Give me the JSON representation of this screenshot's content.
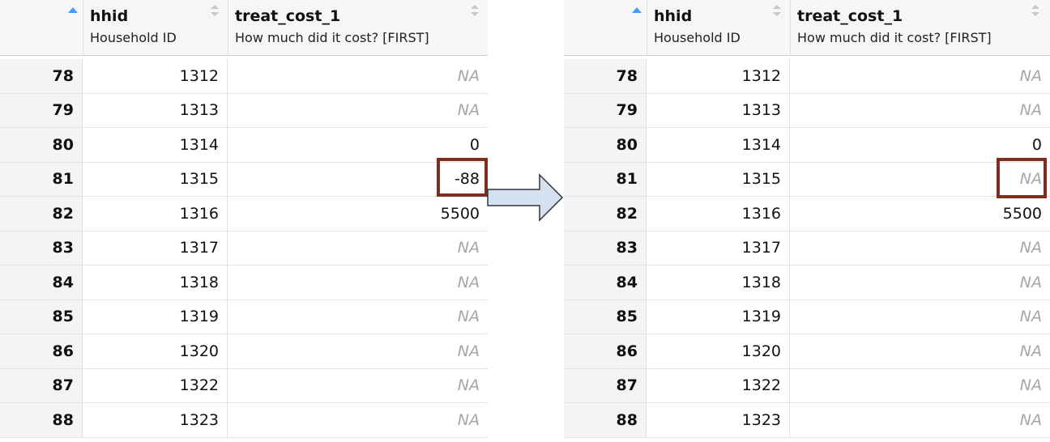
{
  "columns": {
    "hhid": {
      "name": "hhid",
      "label": "Household ID"
    },
    "treat_cost_1": {
      "name": "treat_cost_1",
      "label": "How much did it cost? [FIRST]"
    }
  },
  "colors": {
    "highlight_border": "#7d2e1f",
    "na_text": "#a6a6a6",
    "sort_active": "#4b9bff",
    "arrow_fill": "#d4e1f0"
  },
  "left_table": {
    "rows": [
      {
        "rownum": "78",
        "hhid": "1312",
        "treat_cost_1": "NA"
      },
      {
        "rownum": "79",
        "hhid": "1313",
        "treat_cost_1": "NA"
      },
      {
        "rownum": "80",
        "hhid": "1314",
        "treat_cost_1": "0"
      },
      {
        "rownum": "81",
        "hhid": "1315",
        "treat_cost_1": "-88"
      },
      {
        "rownum": "82",
        "hhid": "1316",
        "treat_cost_1": "5500"
      },
      {
        "rownum": "83",
        "hhid": "1317",
        "treat_cost_1": "NA"
      },
      {
        "rownum": "84",
        "hhid": "1318",
        "treat_cost_1": "NA"
      },
      {
        "rownum": "85",
        "hhid": "1319",
        "treat_cost_1": "NA"
      },
      {
        "rownum": "86",
        "hhid": "1320",
        "treat_cost_1": "NA"
      },
      {
        "rownum": "87",
        "hhid": "1322",
        "treat_cost_1": "NA"
      },
      {
        "rownum": "88",
        "hhid": "1323",
        "treat_cost_1": "NA"
      }
    ]
  },
  "right_table": {
    "rows": [
      {
        "rownum": "78",
        "hhid": "1312",
        "treat_cost_1": "NA"
      },
      {
        "rownum": "79",
        "hhid": "1313",
        "treat_cost_1": "NA"
      },
      {
        "rownum": "80",
        "hhid": "1314",
        "treat_cost_1": "0"
      },
      {
        "rownum": "81",
        "hhid": "1315",
        "treat_cost_1": "NA"
      },
      {
        "rownum": "82",
        "hhid": "1316",
        "treat_cost_1": "5500"
      },
      {
        "rownum": "83",
        "hhid": "1317",
        "treat_cost_1": "NA"
      },
      {
        "rownum": "84",
        "hhid": "1318",
        "treat_cost_1": "NA"
      },
      {
        "rownum": "85",
        "hhid": "1319",
        "treat_cost_1": "NA"
      },
      {
        "rownum": "86",
        "hhid": "1320",
        "treat_cost_1": "NA"
      },
      {
        "rownum": "87",
        "hhid": "1322",
        "treat_cost_1": "NA"
      },
      {
        "rownum": "88",
        "hhid": "1323",
        "treat_cost_1": "NA"
      }
    ]
  }
}
